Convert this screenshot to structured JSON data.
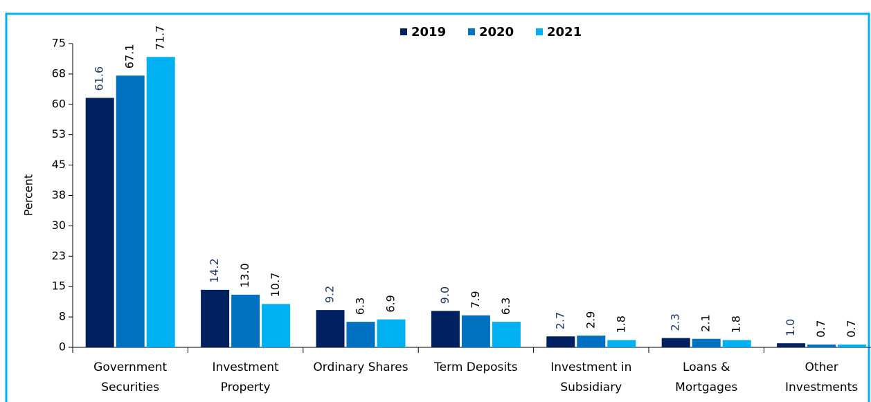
{
  "chart_data": {
    "type": "bar",
    "y_label": "Percent",
    "categories": [
      "Government\nSecurities",
      "Investment\nProperty",
      "Ordinary Shares",
      "Term Deposits",
      "Investment in\nSubsidiary",
      "Loans &\nMortgages",
      "Other\nInvestments"
    ],
    "series": [
      {
        "name": "2019",
        "color": "#002060",
        "label_color": "#1f3864",
        "values": [
          61.6,
          14.2,
          9.2,
          9.0,
          2.7,
          2.3,
          1.0
        ],
        "value_labels": [
          "61.6",
          "14.2",
          "9.2",
          "9.0",
          "2.7",
          "2.3",
          "1.0"
        ]
      },
      {
        "name": "2020",
        "color": "#0070c0",
        "label_color": "#000000",
        "values": [
          67.1,
          13.0,
          6.3,
          7.9,
          2.9,
          2.1,
          0.7
        ],
        "value_labels": [
          "67.1",
          "13.0",
          "6.3",
          "7.9",
          "2.9",
          "2.1",
          "0.7"
        ]
      },
      {
        "name": "2021",
        "color": "#00b0f0",
        "label_color": "#000000",
        "values": [
          71.7,
          10.7,
          6.9,
          6.3,
          1.8,
          1.8,
          0.7
        ],
        "value_labels": [
          "71.7",
          "10.7",
          "6.9",
          "6.3",
          "1.8",
          "1.8",
          "0.7"
        ]
      }
    ],
    "ylim": [
      0,
      75
    ],
    "yticks": [
      0,
      {
        "value": 7.5,
        "label": "8"
      },
      15,
      {
        "value": 22.5,
        "label": "23"
      },
      30,
      {
        "value": 37.5,
        "label": "38"
      },
      45,
      {
        "value": 52.5,
        "label": "53"
      },
      60,
      {
        "value": 67.5,
        "label": "68"
      },
      75
    ],
    "grid": false,
    "legend": "top"
  }
}
